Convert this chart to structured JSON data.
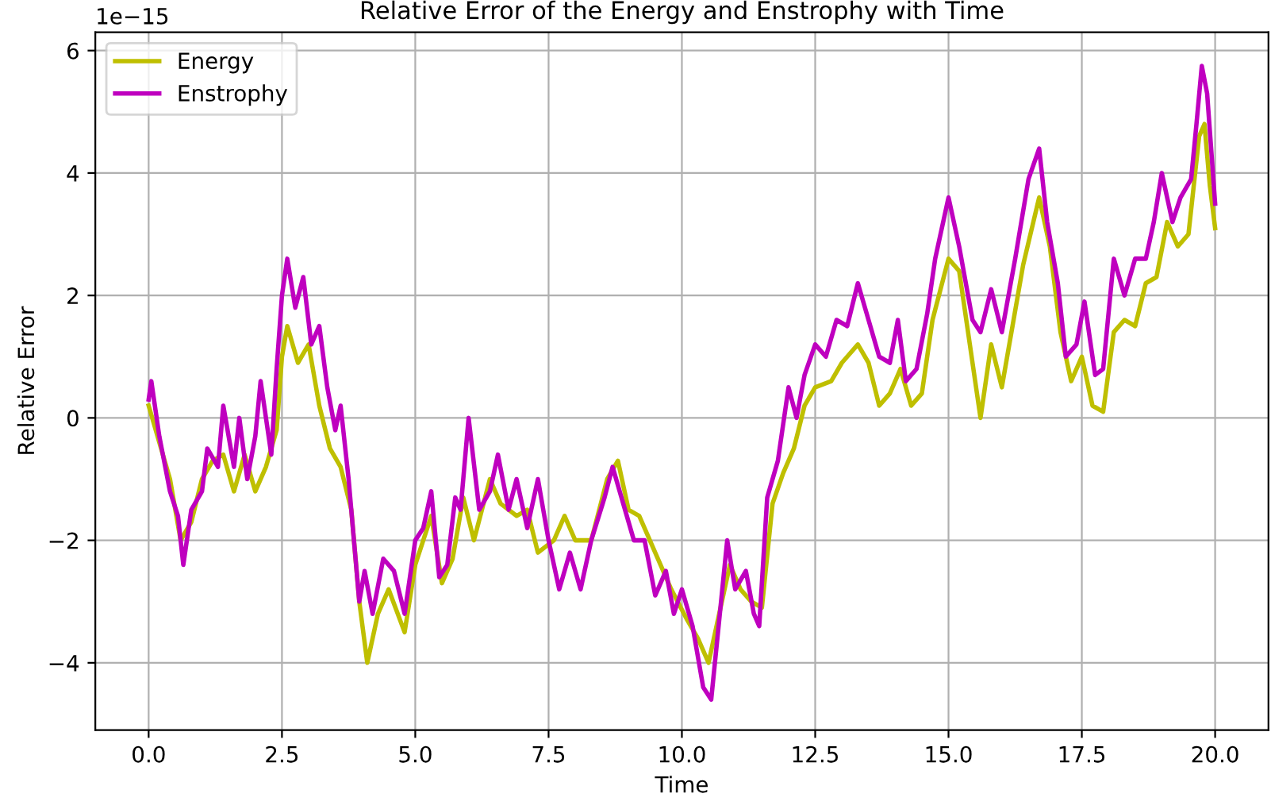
{
  "chart_data": {
    "type": "line",
    "title": "Relative Error of the Energy and Enstrophy with Time",
    "xlabel": "Time",
    "ylabel": "Relative Error",
    "annotations": [
      "1e−15"
    ],
    "xlim": [
      -1,
      21
    ],
    "xticks": [
      {
        "value": 0,
        "label": "0.0"
      },
      {
        "value": 2.5,
        "label": "2.5"
      },
      {
        "value": 5,
        "label": "5.0"
      },
      {
        "value": 7.5,
        "label": "7.5"
      },
      {
        "value": 10,
        "label": "10.0"
      },
      {
        "value": 12.5,
        "label": "12.5"
      },
      {
        "value": 15,
        "label": "15.0"
      },
      {
        "value": 17.5,
        "label": "17.5"
      },
      {
        "value": 20,
        "label": "20.0"
      }
    ],
    "ylim": [
      -5.1,
      6.3
    ],
    "yticks": [
      {
        "value": -4,
        "label": "−4"
      },
      {
        "value": -2,
        "label": "−2"
      },
      0,
      2,
      4,
      6
    ],
    "grid": true,
    "legend": "top left",
    "marker": "none",
    "line_style": "solid",
    "series": [
      {
        "name": "Energy",
        "color": "#bfbf00",
        "x": [
          0,
          0.2,
          0.4,
          0.6,
          0.8,
          1.0,
          1.2,
          1.4,
          1.6,
          1.8,
          2.0,
          2.2,
          2.4,
          2.5,
          2.6,
          2.8,
          3.0,
          3.2,
          3.4,
          3.6,
          3.8,
          3.95,
          4.1,
          4.3,
          4.5,
          4.8,
          5.0,
          5.3,
          5.5,
          5.7,
          5.9,
          6.1,
          6.4,
          6.6,
          6.9,
          7.1,
          7.3,
          7.6,
          7.8,
          8.0,
          8.3,
          8.6,
          8.8,
          9.0,
          9.2,
          9.5,
          9.8,
          10.1,
          10.3,
          10.5,
          10.7,
          10.9,
          11.1,
          11.3,
          11.5,
          11.7,
          11.9,
          12.1,
          12.3,
          12.5,
          12.8,
          13.0,
          13.3,
          13.5,
          13.7,
          13.9,
          14.1,
          14.3,
          14.5,
          14.7,
          15.0,
          15.2,
          15.4,
          15.6,
          15.8,
          16.0,
          16.2,
          16.4,
          16.7,
          16.9,
          17.1,
          17.3,
          17.5,
          17.7,
          17.9,
          18.1,
          18.3,
          18.5,
          18.7,
          18.9,
          19.1,
          19.3,
          19.5,
          19.7,
          19.8,
          19.9,
          20.0
        ],
        "values": [
          0.2,
          -0.4,
          -1.0,
          -2.0,
          -1.7,
          -1.0,
          -0.7,
          -0.6,
          -1.2,
          -0.6,
          -1.2,
          -0.8,
          -0.2,
          1.0,
          1.5,
          0.9,
          1.2,
          0.2,
          -0.5,
          -0.8,
          -1.5,
          -3.0,
          -4.0,
          -3.2,
          -2.8,
          -3.5,
          -2.4,
          -1.6,
          -2.7,
          -2.3,
          -1.3,
          -2.0,
          -1.0,
          -1.4,
          -1.6,
          -1.5,
          -2.2,
          -2.0,
          -1.6,
          -2.0,
          -2.0,
          -1.0,
          -0.7,
          -1.5,
          -1.6,
          -2.2,
          -2.8,
          -3.3,
          -3.6,
          -4.0,
          -3.2,
          -2.4,
          -2.8,
          -3.0,
          -3.1,
          -1.4,
          -0.9,
          -0.5,
          0.2,
          0.5,
          0.6,
          0.9,
          1.2,
          0.9,
          0.2,
          0.4,
          0.8,
          0.2,
          0.4,
          1.6,
          2.6,
          2.4,
          1.2,
          0.0,
          1.2,
          0.5,
          1.5,
          2.5,
          3.6,
          2.8,
          1.4,
          0.6,
          1.0,
          0.2,
          0.1,
          1.4,
          1.6,
          1.5,
          2.2,
          2.3,
          3.2,
          2.8,
          3.0,
          4.6,
          4.8,
          3.8,
          3.1
        ]
      },
      {
        "name": "Enstrophy",
        "color": "#bf00bf",
        "x": [
          0,
          0.05,
          0.2,
          0.4,
          0.55,
          0.65,
          0.8,
          1.0,
          1.1,
          1.3,
          1.4,
          1.6,
          1.7,
          1.85,
          2.0,
          2.1,
          2.3,
          2.4,
          2.5,
          2.6,
          2.75,
          2.9,
          3.05,
          3.2,
          3.35,
          3.5,
          3.6,
          3.75,
          3.85,
          3.95,
          4.05,
          4.2,
          4.4,
          4.6,
          4.8,
          5.0,
          5.15,
          5.3,
          5.45,
          5.6,
          5.75,
          5.85,
          6.0,
          6.2,
          6.4,
          6.55,
          6.75,
          6.9,
          7.1,
          7.3,
          7.5,
          7.7,
          7.9,
          8.1,
          8.3,
          8.55,
          8.7,
          8.9,
          9.1,
          9.3,
          9.5,
          9.7,
          9.85,
          10.0,
          10.2,
          10.4,
          10.55,
          10.7,
          10.85,
          11.0,
          11.2,
          11.35,
          11.45,
          11.6,
          11.8,
          12.0,
          12.15,
          12.3,
          12.5,
          12.7,
          12.9,
          13.1,
          13.3,
          13.5,
          13.7,
          13.9,
          14.05,
          14.2,
          14.4,
          14.6,
          14.75,
          15.0,
          15.2,
          15.45,
          15.6,
          15.8,
          16.0,
          16.25,
          16.5,
          16.7,
          16.85,
          17.05,
          17.2,
          17.4,
          17.55,
          17.75,
          17.9,
          18.1,
          18.3,
          18.5,
          18.7,
          18.85,
          19.0,
          19.2,
          19.35,
          19.55,
          19.65,
          19.75,
          19.85,
          20.0
        ],
        "values": [
          0.3,
          0.6,
          -0.3,
          -1.2,
          -1.6,
          -2.4,
          -1.5,
          -1.2,
          -0.5,
          -0.8,
          0.2,
          -0.8,
          0.0,
          -1.0,
          -0.3,
          0.6,
          -0.6,
          0.8,
          2.0,
          2.6,
          1.8,
          2.3,
          1.2,
          1.5,
          0.5,
          -0.2,
          0.2,
          -1.0,
          -2.0,
          -3.0,
          -2.5,
          -3.2,
          -2.3,
          -2.5,
          -3.2,
          -2.0,
          -1.8,
          -1.2,
          -2.6,
          -2.4,
          -1.3,
          -1.5,
          0.0,
          -1.5,
          -1.2,
          -0.6,
          -1.5,
          -1.0,
          -1.8,
          -1.0,
          -2.0,
          -2.8,
          -2.2,
          -2.8,
          -2.0,
          -1.3,
          -0.8,
          -1.4,
          -2.0,
          -2.0,
          -2.9,
          -2.5,
          -3.2,
          -2.8,
          -3.4,
          -4.4,
          -4.6,
          -3.3,
          -2.0,
          -2.8,
          -2.5,
          -3.2,
          -3.4,
          -1.3,
          -0.7,
          0.5,
          0.0,
          0.7,
          1.2,
          1.0,
          1.6,
          1.5,
          2.2,
          1.6,
          1.0,
          0.9,
          1.6,
          0.6,
          0.8,
          1.7,
          2.6,
          3.6,
          2.8,
          1.6,
          1.4,
          2.1,
          1.4,
          2.6,
          3.9,
          4.4,
          3.2,
          2.2,
          1.0,
          1.2,
          1.9,
          0.7,
          0.8,
          2.6,
          2.0,
          2.6,
          2.6,
          3.2,
          4.0,
          3.2,
          3.6,
          3.9,
          4.8,
          5.75,
          5.3,
          3.5
        ]
      }
    ]
  }
}
